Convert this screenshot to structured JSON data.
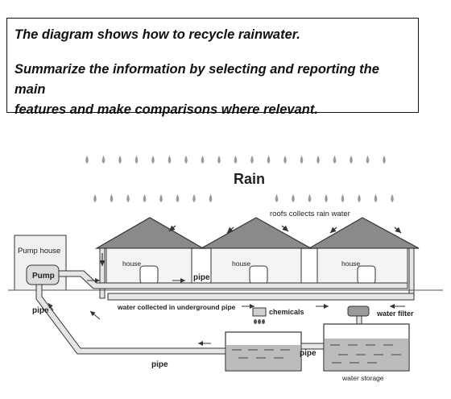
{
  "prompt": {
    "line1": "The diagram shows how to recycle rainwater.",
    "line2": "Summarize the information by selecting and reporting the main",
    "line3": "features and make comparisons where relevant."
  },
  "diagram": {
    "rain_label": "Rain",
    "roof_label": "roofs collects rain water",
    "house_label": "house",
    "pump_house_label": "Pump house",
    "pump_label": "Pump",
    "pipe_label": "pipe",
    "underground_label": "water collected in underground pipe",
    "chemicals_label": "chemicals",
    "filter_label": "water filter",
    "storage_label": "water storage",
    "colors": {
      "roof": "#8a8a8a",
      "wall": "#f4f4f4",
      "pipe_fill": "#e6e6e6",
      "water": "#bcbcbc",
      "stroke": "#333333"
    }
  }
}
